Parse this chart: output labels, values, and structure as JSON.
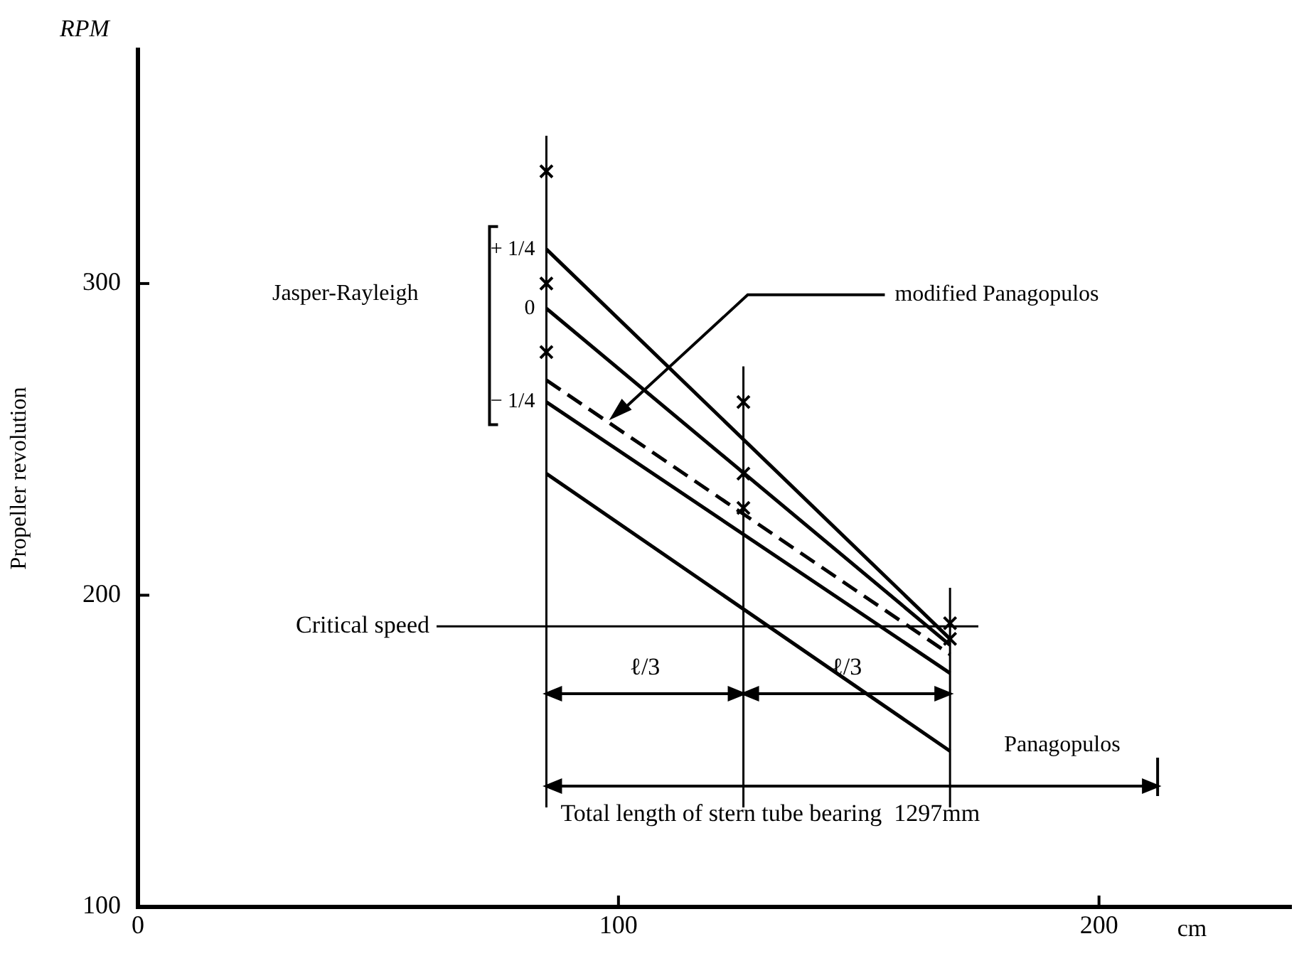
{
  "chart_data": {
    "type": "line",
    "ylabel": "Propeller revolution",
    "xlim": [
      0,
      240
    ],
    "ylim": [
      100,
      375
    ],
    "xticks": [
      0,
      100,
      200
    ],
    "yticks": [
      100,
      200,
      300
    ],
    "grid": false,
    "legend": false,
    "series": [
      {
        "name": "+ 1/4",
        "color": "#000000",
        "x": [
          85,
          169
        ],
        "values": [
          311,
          186
        ],
        "marker": "none",
        "line_style": "solid"
      },
      {
        "name": "0",
        "color": "#000000",
        "x": [
          85,
          169
        ],
        "values": [
          292,
          184
        ],
        "marker": "none",
        "line_style": "solid"
      },
      {
        "name": "modified Panagopulos",
        "color": "#000000",
        "x": [
          85,
          169
        ],
        "values": [
          269,
          181
        ],
        "marker": "none",
        "line_style": "dashed"
      },
      {
        "name": "− 1/4",
        "color": "#000000",
        "x": [
          85,
          169
        ],
        "values": [
          262,
          175
        ],
        "marker": "none",
        "line_style": "solid"
      },
      {
        "name": "Panagopulos",
        "color": "#000000",
        "x": [
          85,
          169
        ],
        "values": [
          239,
          150
        ],
        "marker": "none",
        "line_style": "solid"
      },
      {
        "type": "scatter",
        "color": "#000000",
        "x": [
          85,
          85,
          85,
          126,
          126,
          126,
          169,
          169
        ],
        "values": [
          336,
          300,
          278,
          262,
          239,
          228,
          191,
          186
        ],
        "marker": "cross"
      }
    ],
    "ref_lines": [
      {
        "axis": "x",
        "value": 85,
        "label": null
      },
      {
        "axis": "x",
        "value": 126,
        "label": null
      },
      {
        "axis": "x",
        "value": 169,
        "label": null
      },
      {
        "axis": "y",
        "value": 190,
        "label": "Critical speed"
      }
    ],
    "annotations": [
      "RPM",
      "cm",
      "Jasper-Rayleigh",
      "ℓ/3",
      "ℓ/3",
      "Total length of stern tube bearing  1297mm"
    ]
  }
}
